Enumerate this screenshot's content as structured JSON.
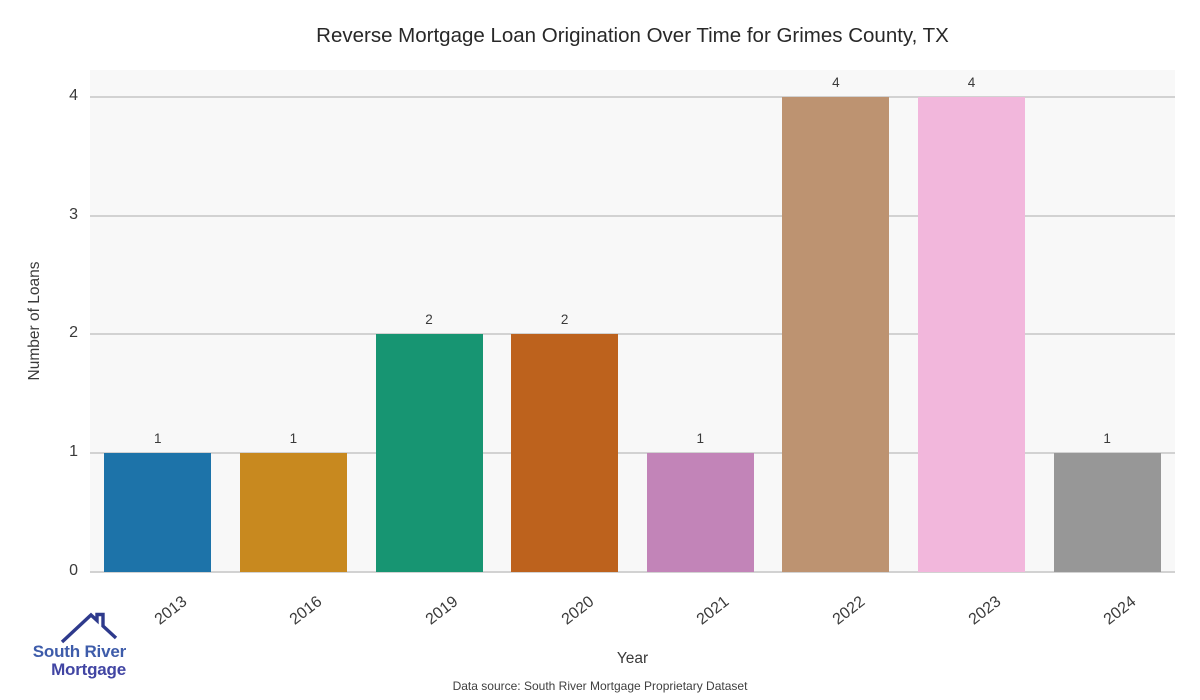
{
  "title": "Reverse Mortgage Loan Origination Over Time for Grimes County, TX",
  "chart_data": {
    "type": "bar",
    "categories": [
      "2013",
      "2016",
      "2019",
      "2020",
      "2021",
      "2022",
      "2023",
      "2024"
    ],
    "values": [
      1,
      1,
      2,
      2,
      1,
      4,
      4,
      1
    ],
    "bar_colors": [
      "#1d73a9",
      "#c8891f",
      "#179572",
      "#bd621d",
      "#c284b8",
      "#bd9371",
      "#f2b7dc",
      "#979797"
    ],
    "bar_value_labels": [
      "1",
      "1",
      "2",
      "2",
      "1",
      "4",
      "4",
      "1"
    ],
    "title": "Reverse Mortgage Loan Origination Over Time for Grimes County, TX",
    "xlabel": "Year",
    "ylabel": "Number of Loans",
    "yticks": [
      0,
      1,
      2,
      3,
      4
    ],
    "ytick_labels": [
      "0",
      "1",
      "2",
      "3",
      "4"
    ],
    "ylim": [
      0,
      4.227
    ],
    "grid": "horizontal",
    "legend": "none",
    "plot_bg_color": "#f8f8f8",
    "grid_color": "#d2d2d2"
  },
  "footer": {
    "data_source": "Data source: South River Mortgage Proprietary Dataset"
  },
  "logo": {
    "line1": "South River",
    "line2": "Mortgage",
    "line1_color": "#3e5caa",
    "line2_color": "#4145a3",
    "roof_color": "#2e3a8c",
    "icon": "house-roof-icon"
  }
}
